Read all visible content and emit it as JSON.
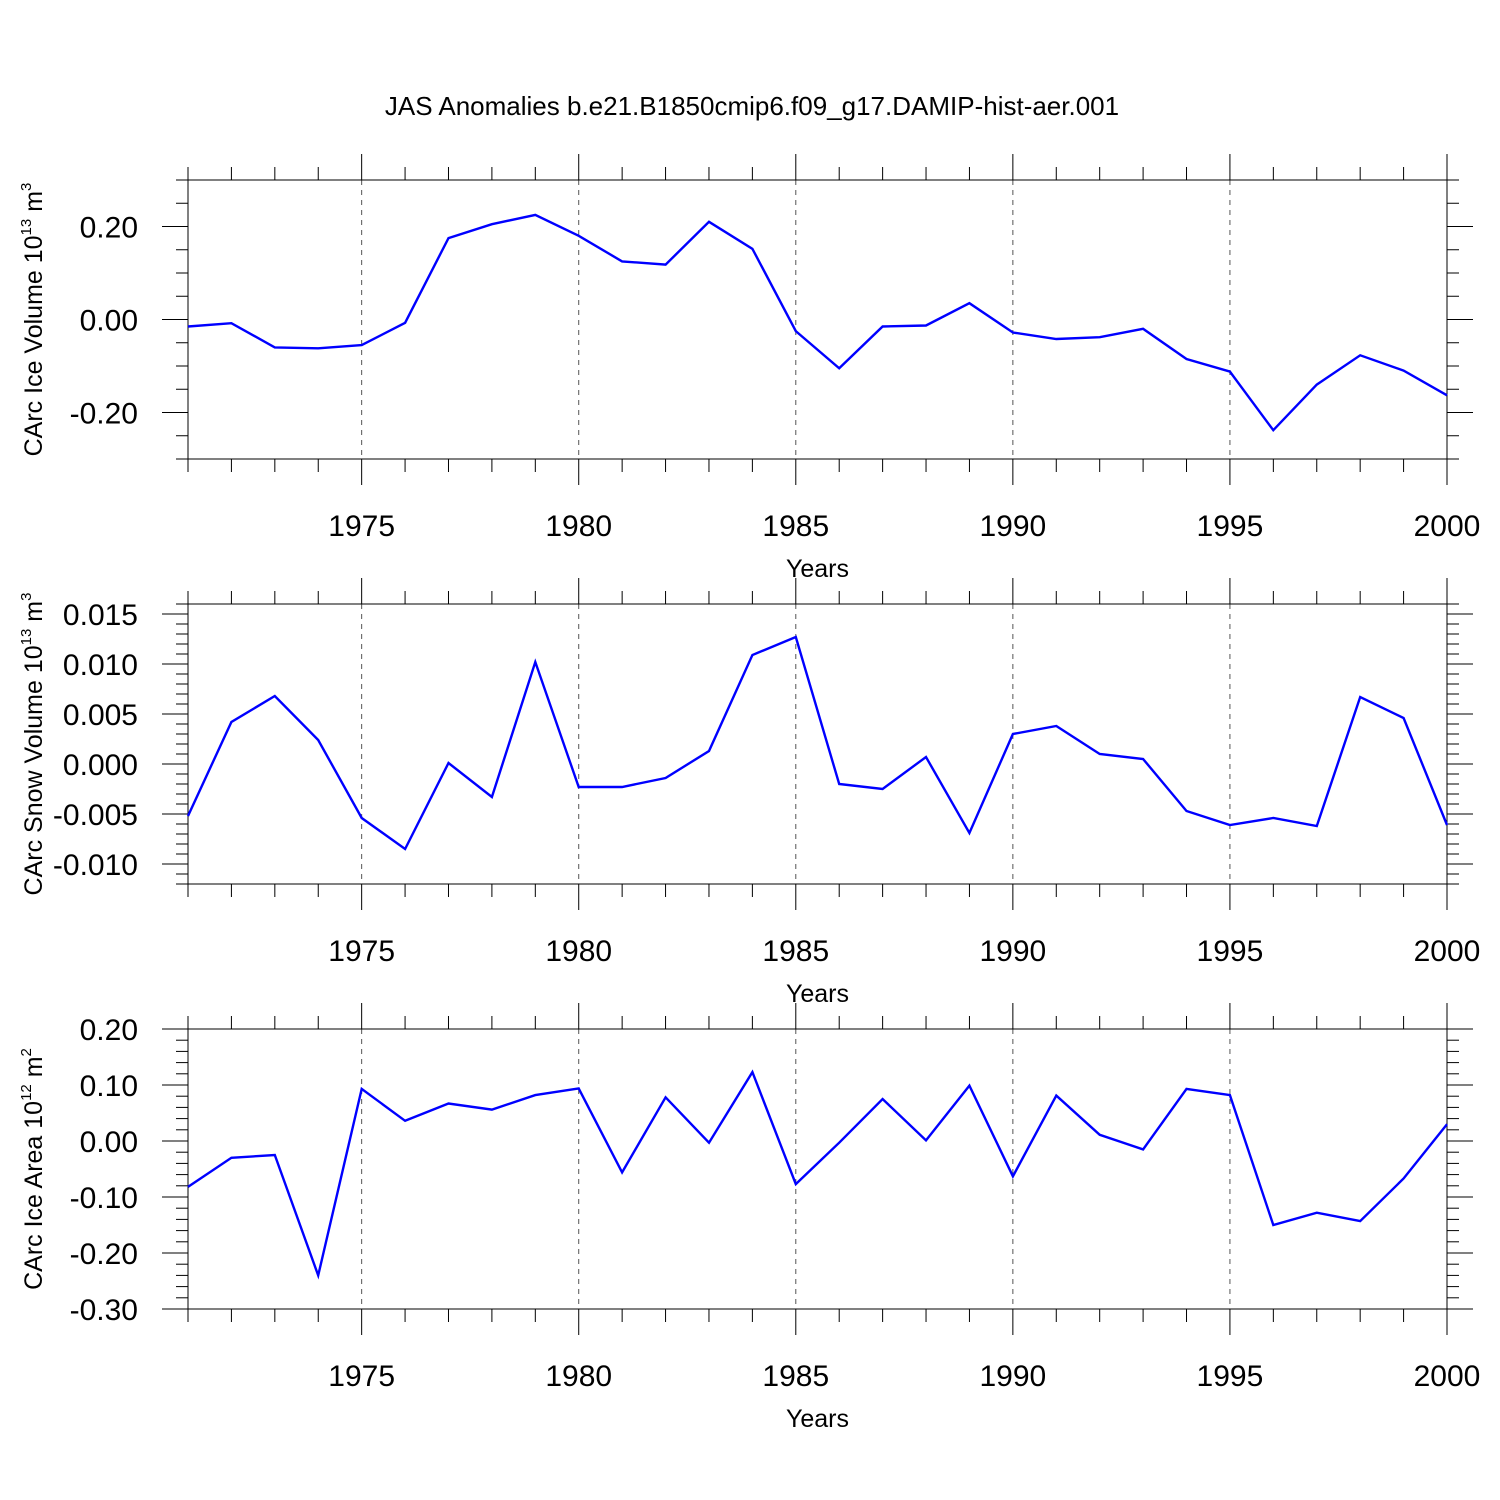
{
  "title": "JAS Anomalies b.e21.B1850cmip6.f09_g17.DAMIP-hist-aer.001",
  "chart_data": [
    {
      "type": "line",
      "title": "JAS Anomalies b.e21.B1850cmip6.f09_g17.DAMIP-hist-aer.001",
      "xlabel": "Years",
      "ylabel": "CArc Ice Volume 10",
      "ylabel_sup": "13",
      "ylabel_unit": "m",
      "ylabel_unit_sup": "3",
      "xlim": [
        1971,
        2000
      ],
      "ylim": [
        -0.3,
        0.3
      ],
      "yticks": [
        -0.2,
        0.0,
        0.2
      ],
      "ytick_labels": [
        "-0.20",
        "0.00",
        "0.20"
      ],
      "yminor_step": 0.05,
      "xticks": [
        1975,
        1980,
        1985,
        1990,
        1995,
        2000
      ],
      "xtick_labels": [
        "1975",
        "1980",
        "1985",
        "1990",
        "1995",
        "2000"
      ],
      "x": [
        1971,
        1972,
        1973,
        1974,
        1975,
        1976,
        1977,
        1978,
        1979,
        1980,
        1981,
        1982,
        1983,
        1984,
        1985,
        1986,
        1987,
        1988,
        1989,
        1990,
        1991,
        1992,
        1993,
        1994,
        1995,
        1996,
        1997,
        1998,
        1999,
        2000
      ],
      "series": [
        {
          "name": "CArc Ice Volume",
          "color": "#0000ff",
          "values": [
            -0.015,
            -0.008,
            -0.06,
            -0.062,
            -0.055,
            -0.007,
            0.175,
            0.205,
            0.225,
            0.18,
            0.125,
            0.118,
            0.21,
            0.152,
            -0.025,
            -0.105,
            -0.015,
            -0.013,
            0.035,
            -0.028,
            -0.042,
            -0.038,
            -0.02,
            -0.085,
            -0.112,
            -0.238,
            -0.14,
            -0.077,
            -0.11,
            -0.163
          ]
        }
      ]
    },
    {
      "type": "line",
      "xlabel": "Years",
      "ylabel": "CArc Snow Volume 10",
      "ylabel_sup": "13",
      "ylabel_unit": "m",
      "ylabel_unit_sup": "3",
      "xlim": [
        1971,
        2000
      ],
      "ylim": [
        -0.012,
        0.016
      ],
      "yticks": [
        -0.01,
        -0.005,
        0.0,
        0.005,
        0.01,
        0.015
      ],
      "ytick_labels": [
        "-0.010",
        "-0.005",
        "0.000",
        "0.005",
        "0.010",
        "0.015"
      ],
      "yminor_step": 0.001,
      "xticks": [
        1975,
        1980,
        1985,
        1990,
        1995,
        2000
      ],
      "xtick_labels": [
        "1975",
        "1980",
        "1985",
        "1990",
        "1995",
        "2000"
      ],
      "x": [
        1971,
        1972,
        1973,
        1974,
        1975,
        1976,
        1977,
        1978,
        1979,
        1980,
        1981,
        1982,
        1983,
        1984,
        1985,
        1986,
        1987,
        1988,
        1989,
        1990,
        1991,
        1992,
        1993,
        1994,
        1995,
        1996,
        1997,
        1998,
        1999,
        2000
      ],
      "series": [
        {
          "name": "CArc Snow Volume",
          "color": "#0000ff",
          "values": [
            -0.0052,
            0.0042,
            0.0068,
            0.0024,
            -0.0054,
            -0.0085,
            0.0001,
            -0.0033,
            0.0102,
            -0.0023,
            -0.0023,
            -0.0014,
            0.0013,
            0.0109,
            0.0127,
            -0.002,
            -0.0025,
            0.0007,
            -0.0069,
            0.003,
            0.0038,
            0.001,
            0.0005,
            -0.0047,
            -0.0061,
            -0.0054,
            -0.0062,
            0.0067,
            0.0046,
            -0.0061
          ]
        }
      ]
    },
    {
      "type": "line",
      "xlabel": "Years",
      "ylabel": "CArc Ice Area 10",
      "ylabel_sup": "12",
      "ylabel_unit": "m",
      "ylabel_unit_sup": "2",
      "xlim": [
        1971,
        2000
      ],
      "ylim": [
        -0.3,
        0.2
      ],
      "yticks": [
        -0.3,
        -0.2,
        -0.1,
        0.0,
        0.1,
        0.2
      ],
      "ytick_labels": [
        "-0.30",
        "-0.20",
        "-0.10",
        "0.00",
        "0.10",
        "0.20"
      ],
      "yminor_step": 0.02,
      "xticks": [
        1975,
        1980,
        1985,
        1990,
        1995,
        2000
      ],
      "xtick_labels": [
        "1975",
        "1980",
        "1985",
        "1990",
        "1995",
        "2000"
      ],
      "x": [
        1971,
        1972,
        1973,
        1974,
        1975,
        1976,
        1977,
        1978,
        1979,
        1980,
        1981,
        1982,
        1983,
        1984,
        1985,
        1986,
        1987,
        1988,
        1989,
        1990,
        1991,
        1992,
        1993,
        1994,
        1995,
        1996,
        1997,
        1998,
        1999,
        2000
      ],
      "series": [
        {
          "name": "CArc Ice Area",
          "color": "#0000ff",
          "values": [
            -0.082,
            -0.03,
            -0.025,
            -0.24,
            0.093,
            0.036,
            0.067,
            0.056,
            0.082,
            0.094,
            -0.056,
            0.078,
            -0.003,
            0.123,
            -0.077,
            -0.003,
            0.075,
            0.001,
            0.099,
            -0.063,
            0.081,
            0.011,
            -0.015,
            0.093,
            0.082,
            -0.15,
            -0.128,
            -0.143,
            -0.067,
            0.03
          ]
        }
      ]
    }
  ]
}
